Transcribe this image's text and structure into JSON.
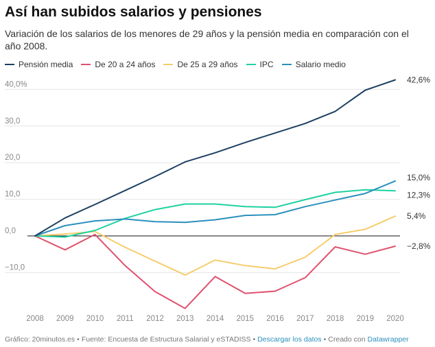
{
  "title": "Así han subidos salarios y pensiones",
  "subtitle": "Variación de los salarios de los menores de 29 años y la pensión media en comparación con el año 2008.",
  "footer": {
    "grafico": "Gráfico: 20minutos.es",
    "fuente": "Fuente: Encuesta de Estructura Salarial y eSTADISS",
    "descargar": "Descargar los datos",
    "creado": "Creado con",
    "tool": "Datawrapper",
    "bullet": "•"
  },
  "colors": {
    "link": "#2a8fbd"
  },
  "chart_data": {
    "type": "line",
    "title": "Así han subidos salarios y pensiones",
    "xlabel": "",
    "ylabel": "",
    "ylim": [
      -20,
      45
    ],
    "grid": true,
    "legend_position": "top-left",
    "x": [
      "2008",
      "2009",
      "2010",
      "2011",
      "2012",
      "2013",
      "2014",
      "2015",
      "2016",
      "2017",
      "2018",
      "2019",
      "2020"
    ],
    "y_ticks": [
      {
        "value": 40,
        "label": "40,0%"
      },
      {
        "value": 30,
        "label": "30,0"
      },
      {
        "value": 20,
        "label": "20,0"
      },
      {
        "value": 10,
        "label": "10,0"
      },
      {
        "value": 0,
        "label": "0,0"
      },
      {
        "value": -10,
        "label": "−10,0"
      }
    ],
    "series": [
      {
        "name": "Pensión media",
        "color": "#1d3f61",
        "values": [
          0,
          4.9,
          8.6,
          12.4,
          16.2,
          20.2,
          22.7,
          25.5,
          28.1,
          30.7,
          34.0,
          39.8,
          42.6
        ],
        "end_label": "42,6%"
      },
      {
        "name": "De 20 a 24 años",
        "color": "#e0506e",
        "values": [
          0,
          -3.8,
          0.4,
          -8.1,
          -15.2,
          -19.8,
          -11.1,
          -15.7,
          -15.1,
          -11.4,
          -3.0,
          -5.0,
          -2.8
        ],
        "end_label": "−2,8%"
      },
      {
        "name": "De 25 a 29 años",
        "color": "#f5cd6c",
        "values": [
          0,
          0.5,
          1.2,
          -3.1,
          -6.9,
          -10.7,
          -6.6,
          -8.1,
          -9.0,
          -5.8,
          0.4,
          1.8,
          5.4
        ],
        "end_label": "5,4%"
      },
      {
        "name": "IPC",
        "color": "#1ed1a0",
        "values": [
          0,
          -0.3,
          1.5,
          4.8,
          7.2,
          8.7,
          8.7,
          8.0,
          7.8,
          9.9,
          11.9,
          12.6,
          12.3
        ],
        "end_label": "12,3%"
      },
      {
        "name": "Salario medio",
        "color": "#2a8fbd",
        "values": [
          0,
          2.8,
          4.1,
          4.6,
          3.9,
          3.7,
          4.4,
          5.6,
          5.8,
          8.0,
          9.8,
          11.6,
          15.0
        ],
        "end_label": "15,0%"
      }
    ]
  }
}
